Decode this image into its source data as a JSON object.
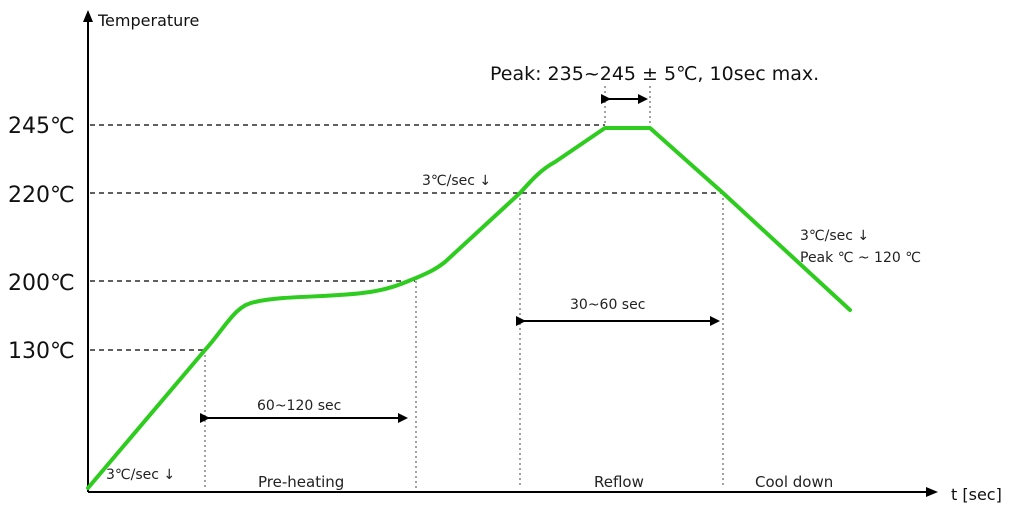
{
  "axes": {
    "y_label": "Temperature",
    "x_label": "t [sec]"
  },
  "temperatures": {
    "t245": "245℃",
    "t220": "220℃",
    "t200": "200℃",
    "t130": "130℃"
  },
  "annotations": {
    "peak": "Peak: 235~245 ± 5℃, 10sec max.",
    "rate_initial": "3℃/sec ↓",
    "rate_reflow": "3℃/sec ↓",
    "rate_cool": "3℃/sec ↓",
    "cool_range": "Peak ℃ ~ 120 ℃",
    "preheat_time": "60~120 sec",
    "reflow_time": "30~60 sec"
  },
  "phases": {
    "preheat": "Pre-heating",
    "reflow": "Reflow",
    "cool": "Cool down"
  },
  "colors": {
    "profile": "#2ecc1f",
    "axis": "#000000"
  }
}
